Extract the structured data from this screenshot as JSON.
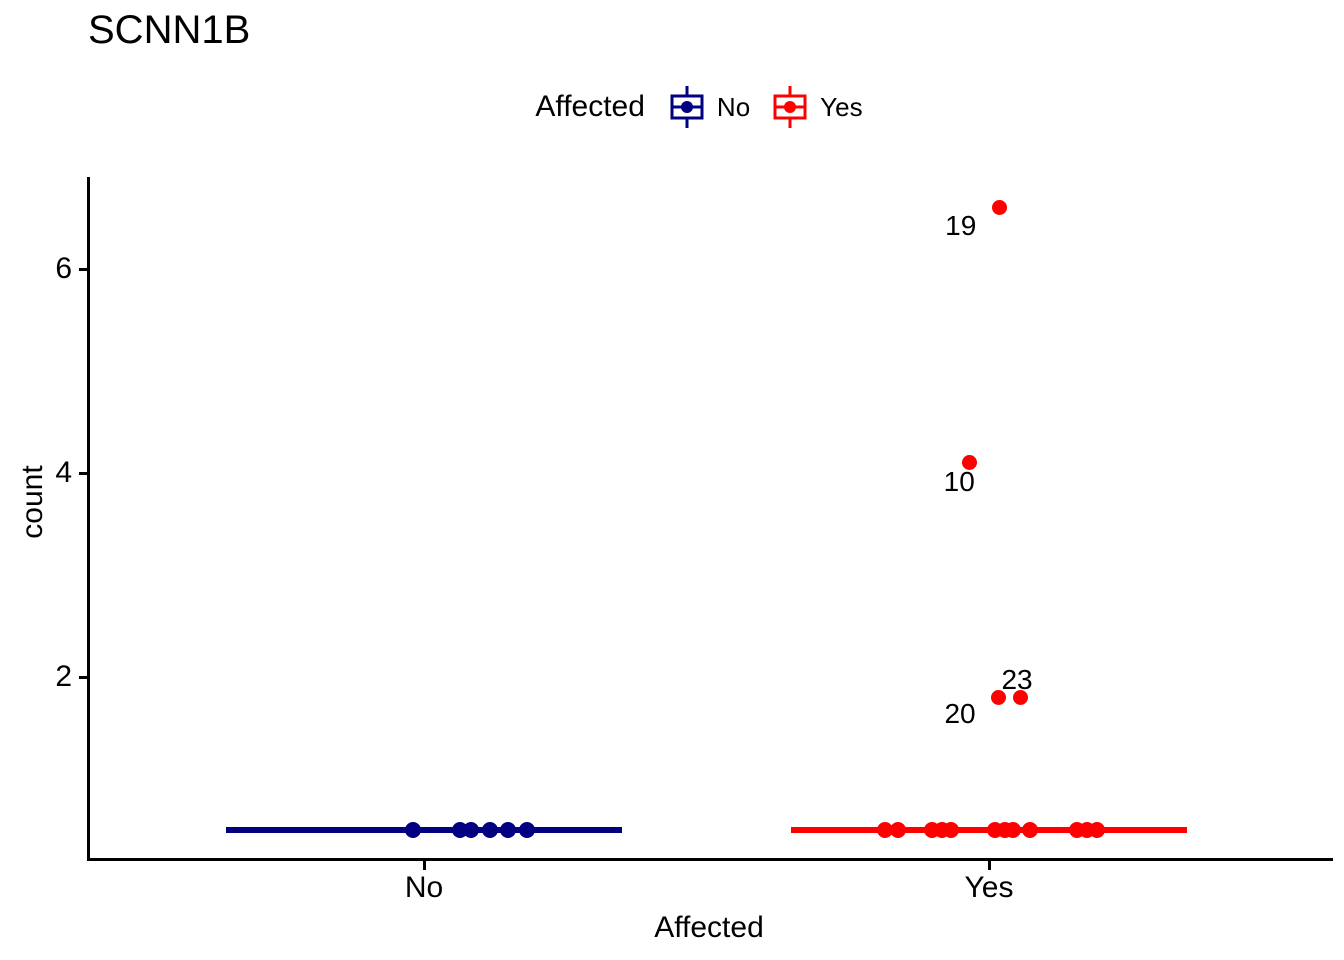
{
  "title": "SCNN1B",
  "legend": {
    "title": "Affected",
    "items": [
      {
        "label": "No",
        "color": "#000080"
      },
      {
        "label": "Yes",
        "color": "#FF0000"
      }
    ]
  },
  "axes": {
    "x": {
      "label": "Affected",
      "categories": [
        "No",
        "Yes"
      ]
    },
    "y": {
      "label": "count",
      "ticks": [
        2,
        4,
        6
      ]
    }
  },
  "chart_data": {
    "type": "boxplot",
    "title": "SCNN1B",
    "xlabel": "Affected",
    "ylabel": "count",
    "categories": [
      "No",
      "Yes"
    ],
    "ylim": [
      0.2,
      6.9
    ],
    "yticks": [
      2,
      4,
      6
    ],
    "grid": false,
    "legend_position": "top",
    "legend_title": "Affected",
    "series": [
      {
        "name": "No",
        "color": "#000080",
        "median": 0.5,
        "q1": 0.5,
        "q3": 0.5,
        "box_width": 0.7,
        "points": [
          {
            "offset": -0.02,
            "y": 0.5
          },
          {
            "offset": 0.063,
            "y": 0.5
          },
          {
            "offset": 0.084,
            "y": 0.5
          },
          {
            "offset": 0.116,
            "y": 0.5
          },
          {
            "offset": 0.148,
            "y": 0.5
          },
          {
            "offset": 0.182,
            "y": 0.5
          }
        ],
        "outliers": []
      },
      {
        "name": "Yes",
        "color": "#FF0000",
        "median": 0.5,
        "q1": 0.5,
        "q3": 0.5,
        "box_width": 0.7,
        "points": [
          {
            "offset": -0.184,
            "y": 0.5
          },
          {
            "offset": -0.161,
            "y": 0.5
          },
          {
            "offset": -0.101,
            "y": 0.5
          },
          {
            "offset": -0.083,
            "y": 0.5
          },
          {
            "offset": -0.067,
            "y": 0.5
          },
          {
            "offset": 0.011,
            "y": 0.5
          },
          {
            "offset": 0.028,
            "y": 0.5
          },
          {
            "offset": 0.042,
            "y": 0.5
          },
          {
            "offset": 0.073,
            "y": 0.5
          },
          {
            "offset": 0.156,
            "y": 0.5
          },
          {
            "offset": 0.173,
            "y": 0.5
          },
          {
            "offset": 0.191,
            "y": 0.5
          }
        ],
        "outliers": [
          {
            "label": "19",
            "offset": 0.019,
            "y": 6.6,
            "label_dx": -39,
            "label_dy": 18
          },
          {
            "label": "10",
            "offset": -0.035,
            "y": 4.1,
            "label_dx": -10,
            "label_dy": 19
          },
          {
            "label": "20",
            "offset": 0.016,
            "y": 1.8,
            "label_dx": -38,
            "label_dy": 17
          },
          {
            "label": "23",
            "offset": 0.055,
            "y": 1.8,
            "label_dx": -3,
            "label_dy": -17
          }
        ]
      }
    ]
  }
}
